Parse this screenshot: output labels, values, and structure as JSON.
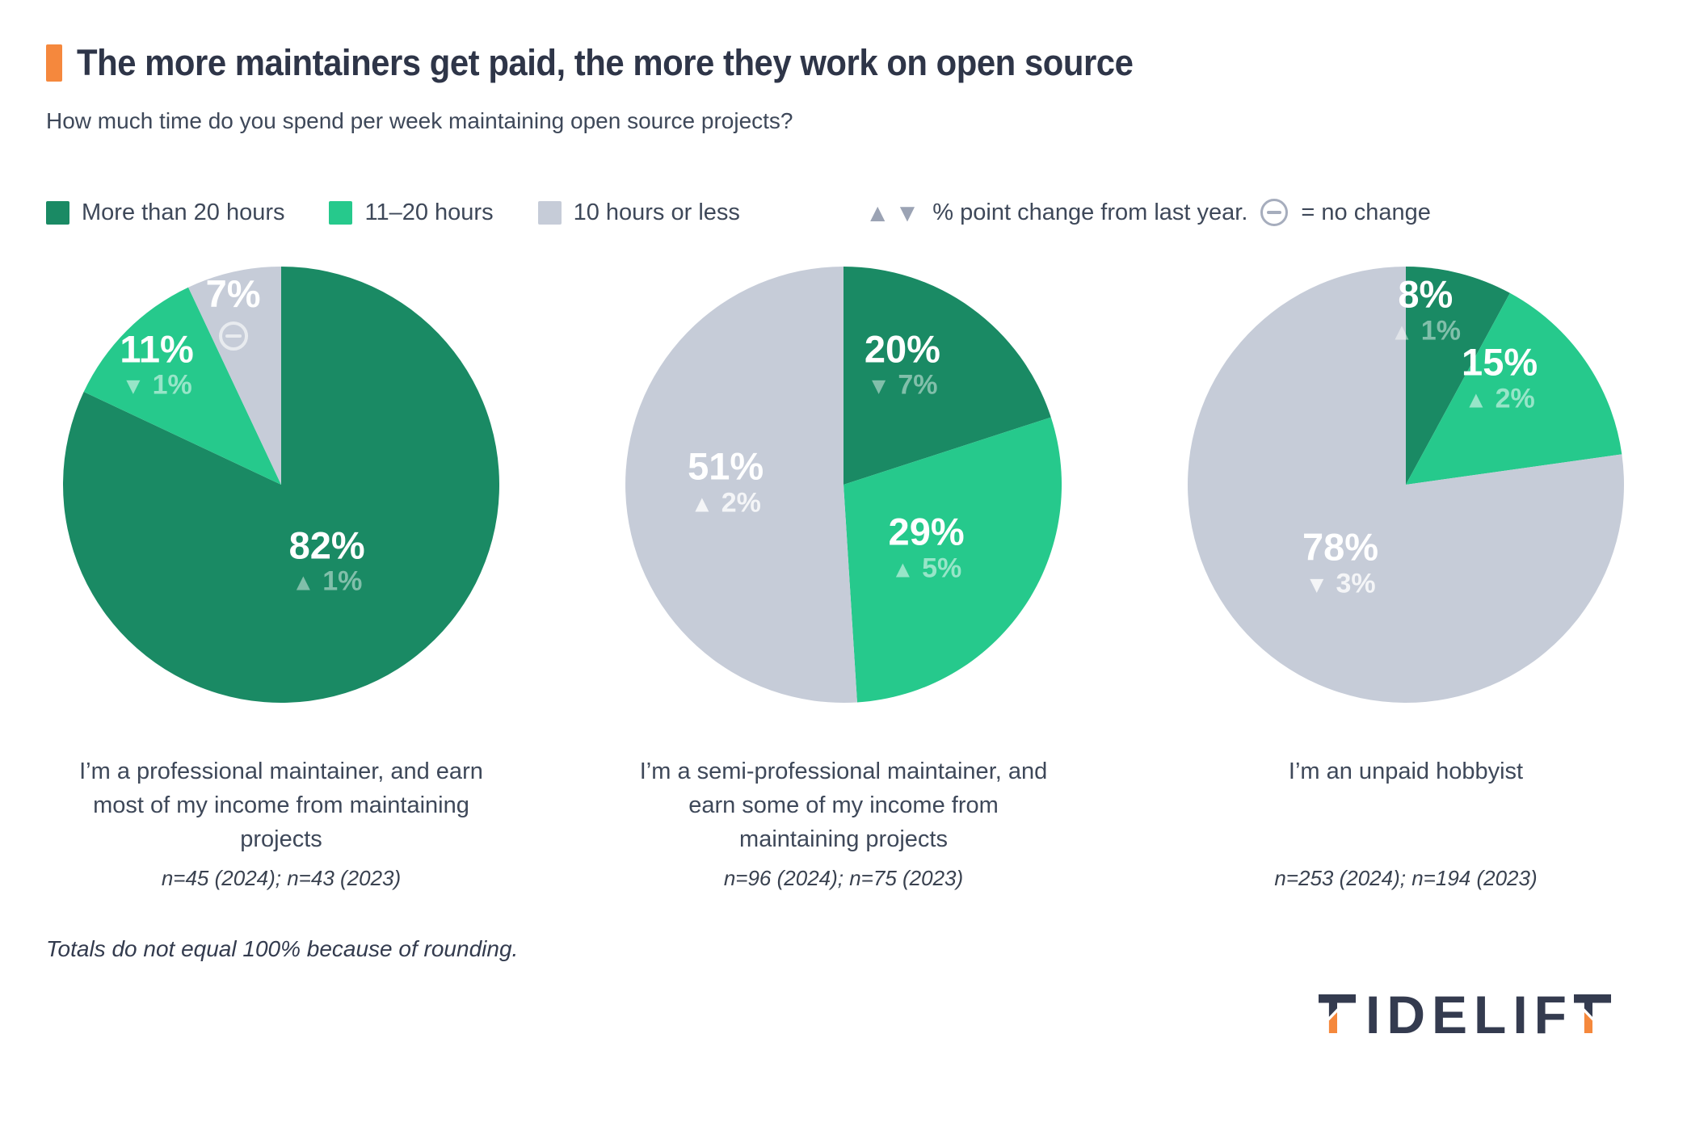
{
  "header": {
    "title": "The more maintainers get paid, the more they work on open source",
    "subtitle": "How much time do you spend per week maintaining open source projects?"
  },
  "legend": {
    "items": [
      {
        "label": "More than 20 hours",
        "color": "#1a8a64"
      },
      {
        "label": "11–20 hours",
        "color": "#26c98c"
      },
      {
        "label": "10 hours or less",
        "color": "#c6ccd8"
      }
    ],
    "change_note": "% point change from last year.",
    "no_change_note": "= no change",
    "triangle_color": "#9ba3b4"
  },
  "chart_data": [
    {
      "type": "pie",
      "caption": "I’m a professional maintainer, and earn most of my income from maintaining projects",
      "sample": "n=45 (2024); n=43 (2023)",
      "n_2024": 45,
      "n_2023": 43,
      "slices": [
        {
          "label": "More than 20 hours",
          "value": 82,
          "color": "#1a8a64",
          "change": {
            "direction": "up",
            "value": "1%"
          },
          "label_pos": [
            0.21,
            0.35
          ]
        },
        {
          "label": "11–20 hours",
          "value": 11,
          "color": "#26c98c",
          "change": {
            "direction": "down",
            "value": "1%"
          },
          "label_pos": [
            -0.57,
            -0.55
          ]
        },
        {
          "label": "10 hours or less",
          "value": 7,
          "color": "#c6ccd8",
          "change": {
            "direction": "none",
            "value": null
          },
          "label_pos": [
            -0.22,
            -0.79
          ]
        }
      ]
    },
    {
      "type": "pie",
      "caption": "I’m a semi-professional maintainer, and earn some of my income from maintaining projects",
      "sample": "n=96 (2024); n=75 (2023)",
      "n_2024": 96,
      "n_2023": 75,
      "slices": [
        {
          "label": "More than 20 hours",
          "value": 20,
          "color": "#1a8a64",
          "change": {
            "direction": "down",
            "value": "7%"
          },
          "label_pos": [
            0.27,
            -0.55
          ]
        },
        {
          "label": "11–20 hours",
          "value": 29,
          "color": "#26c98c",
          "change": {
            "direction": "up",
            "value": "5%"
          },
          "label_pos": [
            0.38,
            0.29
          ]
        },
        {
          "label": "10 hours or less",
          "value": 51,
          "color": "#c6ccd8",
          "change": {
            "direction": "up",
            "value": "2%"
          },
          "label_pos": [
            -0.54,
            -0.01
          ]
        }
      ]
    },
    {
      "type": "pie",
      "caption": "I’m an unpaid hobbyist",
      "sample": "n=253 (2024); n=194 (2023)",
      "n_2024": 253,
      "n_2023": 194,
      "slices": [
        {
          "label": "More than 20 hours",
          "value": 8,
          "color": "#1a8a64",
          "change": {
            "direction": "up",
            "value": "1%"
          },
          "label_pos": [
            0.09,
            -0.8
          ]
        },
        {
          "label": "11–20 hours",
          "value": 15,
          "color": "#26c98c",
          "change": {
            "direction": "up",
            "value": "2%"
          },
          "label_pos": [
            0.43,
            -0.49
          ]
        },
        {
          "label": "10 hours or less",
          "value": 78,
          "color": "#c6ccd8",
          "change": {
            "direction": "down",
            "value": "3%"
          },
          "label_pos": [
            -0.3,
            0.36
          ]
        }
      ]
    }
  ],
  "footnote": "Totals do not equal 100% because of rounding.",
  "logo": {
    "text": "TIDELIFT",
    "navy": "#343b4f",
    "orange": "#f5883c"
  }
}
